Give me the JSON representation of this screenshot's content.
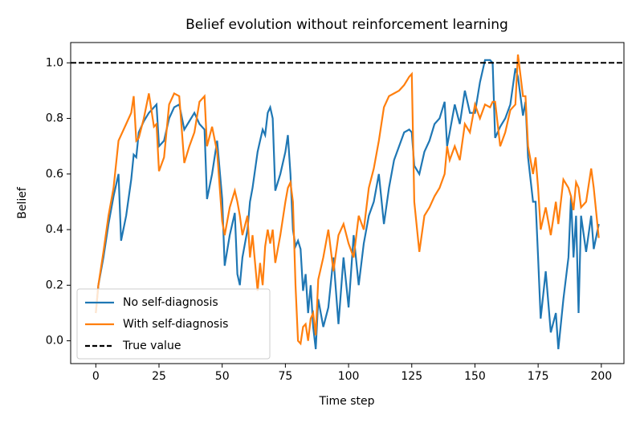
{
  "chart_data": {
    "type": "line",
    "title": "Belief evolution without reinforcement learning",
    "xlabel": "Time step",
    "ylabel": "Belief",
    "x": [
      0,
      1,
      3,
      5,
      7,
      9,
      10,
      12,
      14,
      15,
      16,
      17,
      19,
      21,
      23,
      24,
      25,
      27,
      29,
      31,
      33,
      35,
      37,
      39,
      41,
      43,
      44,
      46,
      48,
      50,
      51,
      53,
      55,
      56,
      57,
      58,
      60,
      61,
      62,
      64,
      65,
      66,
      67,
      68,
      69,
      70,
      71,
      73,
      75,
      76,
      77,
      78,
      79,
      80,
      81,
      82,
      83,
      84,
      85,
      86,
      87,
      88,
      90,
      92,
      94,
      96,
      98,
      100,
      102,
      104,
      106,
      108,
      110,
      112,
      114,
      116,
      118,
      120,
      122,
      124,
      125,
      126,
      128,
      130,
      132,
      134,
      136,
      138,
      139,
      140,
      142,
      144,
      146,
      148,
      150,
      152,
      154,
      156,
      157,
      158,
      160,
      162,
      164,
      166,
      167,
      169,
      170,
      171,
      173,
      174,
      175,
      176,
      178,
      180,
      182,
      183,
      185,
      187,
      188,
      189,
      190,
      191,
      192,
      194,
      196,
      197,
      199
    ],
    "series": [
      {
        "name": "No self-diagnosis",
        "color": "#1f77b4",
        "values": [
          0.1,
          0.2,
          0.3,
          0.42,
          0.52,
          0.6,
          0.36,
          0.45,
          0.58,
          0.67,
          0.66,
          0.75,
          0.79,
          0.82,
          0.84,
          0.85,
          0.7,
          0.72,
          0.8,
          0.84,
          0.85,
          0.76,
          0.79,
          0.82,
          0.78,
          0.76,
          0.51,
          0.6,
          0.72,
          0.51,
          0.27,
          0.38,
          0.46,
          0.24,
          0.2,
          0.3,
          0.4,
          0.5,
          0.55,
          0.68,
          0.72,
          0.76,
          0.74,
          0.82,
          0.84,
          0.8,
          0.54,
          0.6,
          0.68,
          0.74,
          0.6,
          0.4,
          0.34,
          0.36,
          0.33,
          0.18,
          0.24,
          0.1,
          0.2,
          0.05,
          -0.03,
          0.15,
          0.05,
          0.12,
          0.3,
          0.06,
          0.3,
          0.12,
          0.38,
          0.2,
          0.35,
          0.45,
          0.5,
          0.6,
          0.42,
          0.55,
          0.65,
          0.7,
          0.75,
          0.76,
          0.75,
          0.63,
          0.6,
          0.68,
          0.72,
          0.78,
          0.8,
          0.86,
          0.7,
          0.75,
          0.85,
          0.78,
          0.9,
          0.82,
          0.82,
          0.93,
          1.01,
          1.01,
          1.0,
          0.73,
          0.77,
          0.8,
          0.85,
          0.98,
          0.95,
          0.81,
          0.86,
          0.66,
          0.5,
          0.5,
          0.3,
          0.08,
          0.25,
          0.03,
          0.1,
          -0.03,
          0.15,
          0.3,
          0.52,
          0.3,
          0.45,
          0.1,
          0.45,
          0.32,
          0.45,
          0.33,
          0.42
        ]
      },
      {
        "name": "With self-diagnosis",
        "color": "#ff7f0e",
        "values": [
          0.1,
          0.2,
          0.32,
          0.45,
          0.55,
          0.72,
          0.74,
          0.78,
          0.82,
          0.88,
          0.72,
          0.73,
          0.8,
          0.89,
          0.77,
          0.78,
          0.61,
          0.66,
          0.85,
          0.89,
          0.88,
          0.64,
          0.7,
          0.75,
          0.86,
          0.88,
          0.7,
          0.77,
          0.68,
          0.43,
          0.38,
          0.48,
          0.54,
          0.5,
          0.45,
          0.38,
          0.45,
          0.3,
          0.38,
          0.18,
          0.28,
          0.2,
          0.34,
          0.4,
          0.35,
          0.4,
          0.28,
          0.38,
          0.5,
          0.55,
          0.57,
          0.5,
          0.2,
          0.0,
          -0.01,
          0.05,
          0.06,
          0.0,
          0.08,
          0.1,
          0.02,
          0.22,
          0.3,
          0.4,
          0.25,
          0.38,
          0.42,
          0.35,
          0.3,
          0.45,
          0.4,
          0.55,
          0.62,
          0.72,
          0.84,
          0.88,
          0.89,
          0.9,
          0.92,
          0.95,
          0.96,
          0.5,
          0.32,
          0.45,
          0.48,
          0.52,
          0.55,
          0.6,
          0.7,
          0.65,
          0.7,
          0.65,
          0.78,
          0.75,
          0.85,
          0.8,
          0.85,
          0.84,
          0.86,
          0.86,
          0.7,
          0.75,
          0.83,
          0.85,
          1.03,
          0.88,
          0.88,
          0.7,
          0.6,
          0.66,
          0.55,
          0.4,
          0.48,
          0.38,
          0.5,
          0.42,
          0.58,
          0.55,
          0.52,
          0.47,
          0.57,
          0.55,
          0.48,
          0.5,
          0.62,
          0.55,
          0.37
        ]
      }
    ],
    "hline": {
      "name": "True value",
      "value": 1.0,
      "color": "#000000"
    },
    "xlim": [
      -9.95,
      208.95
    ],
    "ylim": [
      -0.082,
      1.073
    ],
    "xticks": [
      0,
      25,
      50,
      75,
      100,
      125,
      150,
      175,
      200
    ],
    "yticks": [
      {
        "value": 0,
        "label": "0.0"
      },
      0.2,
      0.4,
      0.6,
      0.8,
      {
        "value": 1,
        "label": "1.0"
      }
    ],
    "legend": "lower left"
  }
}
